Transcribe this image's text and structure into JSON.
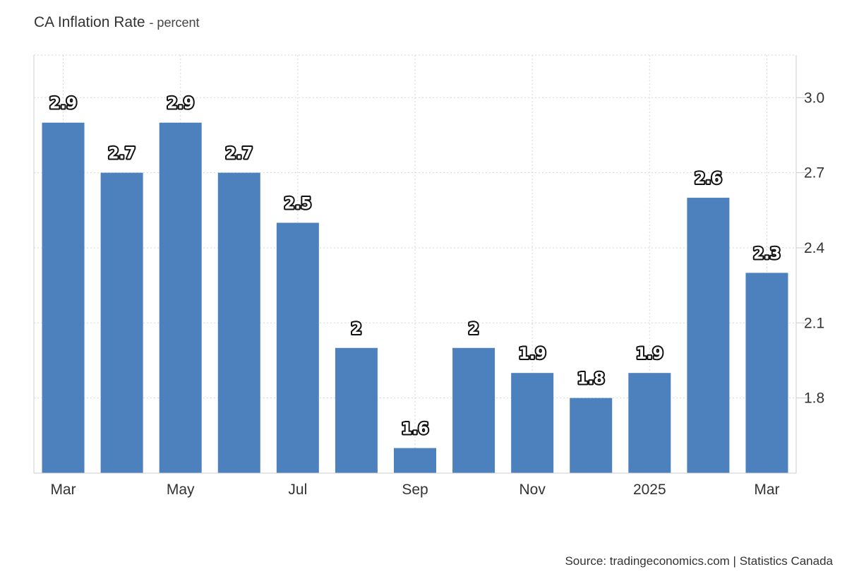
{
  "header": {
    "title": "CA Inflation Rate",
    "subtitle": "- percent"
  },
  "footer": {
    "source": "Source: tradingeconomics.com | Statistics Canada"
  },
  "chart_data": {
    "type": "bar",
    "categories": [
      "2024-03",
      "2024-04",
      "2024-05",
      "2024-06",
      "2024-07",
      "2024-08",
      "2024-09",
      "2024-10",
      "2024-11",
      "2024-12",
      "2025-01",
      "2025-02",
      "2025-03"
    ],
    "values": [
      2.9,
      2.7,
      2.9,
      2.7,
      2.5,
      2,
      1.6,
      2,
      1.9,
      1.8,
      1.9,
      2.6,
      2.3
    ],
    "data_labels": [
      "2.9",
      "2.7",
      "2.9",
      "2.7",
      "2.5",
      "2",
      "1.6",
      "2",
      "1.9",
      "1.8",
      "1.9",
      "2.6",
      "2.3"
    ],
    "x_tick_labels": [
      {
        "index": 0,
        "label": "Mar"
      },
      {
        "index": 2,
        "label": "May"
      },
      {
        "index": 4,
        "label": "Jul"
      },
      {
        "index": 6,
        "label": "Sep"
      },
      {
        "index": 8,
        "label": "Nov"
      },
      {
        "index": 10,
        "label": "2025"
      },
      {
        "index": 12,
        "label": "Mar"
      }
    ],
    "y_ticks": [
      {
        "value": 1.8,
        "label": "1.8"
      },
      {
        "value": 2.1,
        "label": "2.1"
      },
      {
        "value": 2.4,
        "label": "2.4"
      },
      {
        "value": 2.7,
        "label": "2.7"
      },
      {
        "value": 3.0,
        "label": "3.0"
      }
    ],
    "ylim": [
      1.5,
      3.17
    ],
    "y_axis_side": "right",
    "grid": true,
    "bar_color": "#4d81bd",
    "title": "CA Inflation Rate",
    "xlabel": "",
    "ylabel": ""
  }
}
